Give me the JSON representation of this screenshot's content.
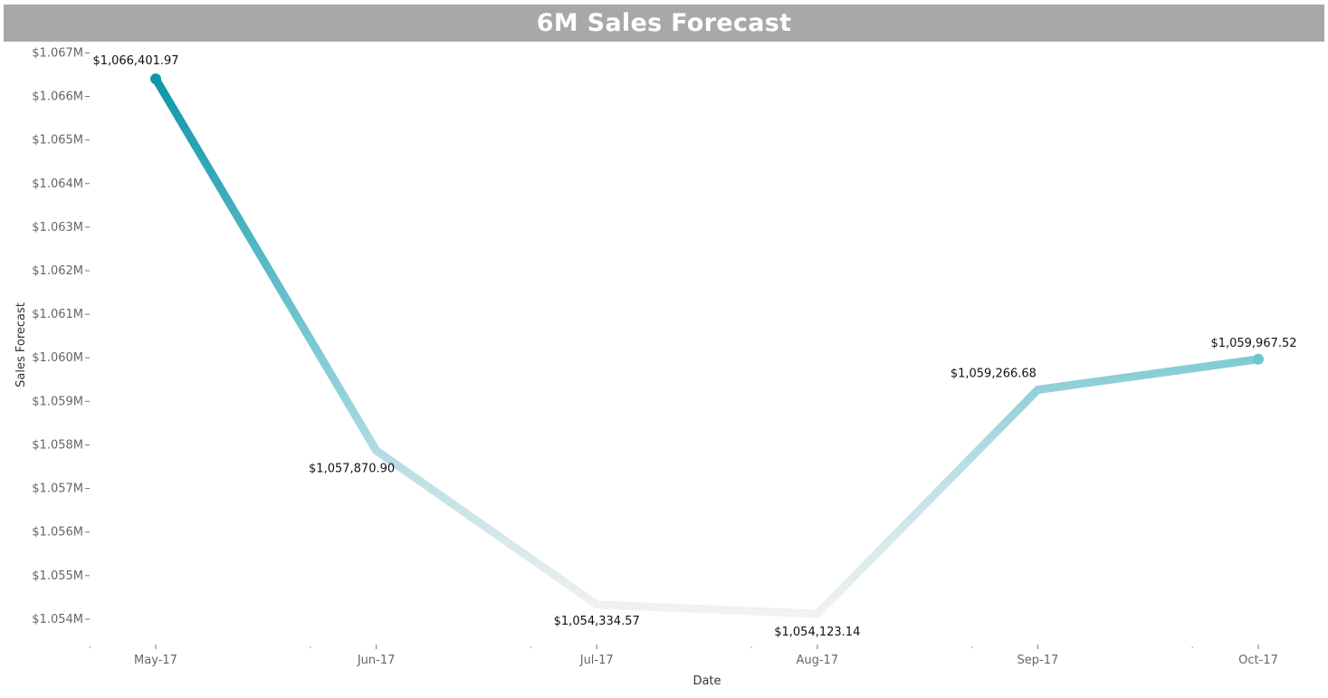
{
  "chart_data": {
    "type": "line",
    "title": "6M Sales Forecast",
    "xlabel": "Date",
    "ylabel": "Sales Forecast",
    "categories": [
      "May-17",
      "Jun-17",
      "Jul-17",
      "Aug-17",
      "Sep-17",
      "Oct-17"
    ],
    "values": [
      1066401.97,
      1057870.9,
      1054334.57,
      1054123.14,
      1059266.68,
      1059967.52
    ],
    "data_labels": [
      "$1,066,401.97",
      "$1,057,870.90",
      "$1,054,334.57",
      "$1,054,123.14",
      "$1,059,266.68",
      "$1,059,967.52"
    ],
    "yticks": [
      1054000,
      1055000,
      1056000,
      1057000,
      1058000,
      1059000,
      1060000,
      1061000,
      1062000,
      1063000,
      1064000,
      1065000,
      1066000,
      1067000
    ],
    "ytick_labels": [
      "$1.054M",
      "$1.055M",
      "$1.056M",
      "$1.057M",
      "$1.058M",
      "$1.059M",
      "$1.060M",
      "$1.061M",
      "$1.062M",
      "$1.063M",
      "$1.064M",
      "$1.065M",
      "$1.066M",
      "$1.067M"
    ],
    "ylim": [
      1053500,
      1067050
    ],
    "grid": false,
    "legend": "none",
    "colors": {
      "high": "#0f96a8",
      "low": "#f2f2f2",
      "title_bar": "#a8a8a8"
    }
  }
}
